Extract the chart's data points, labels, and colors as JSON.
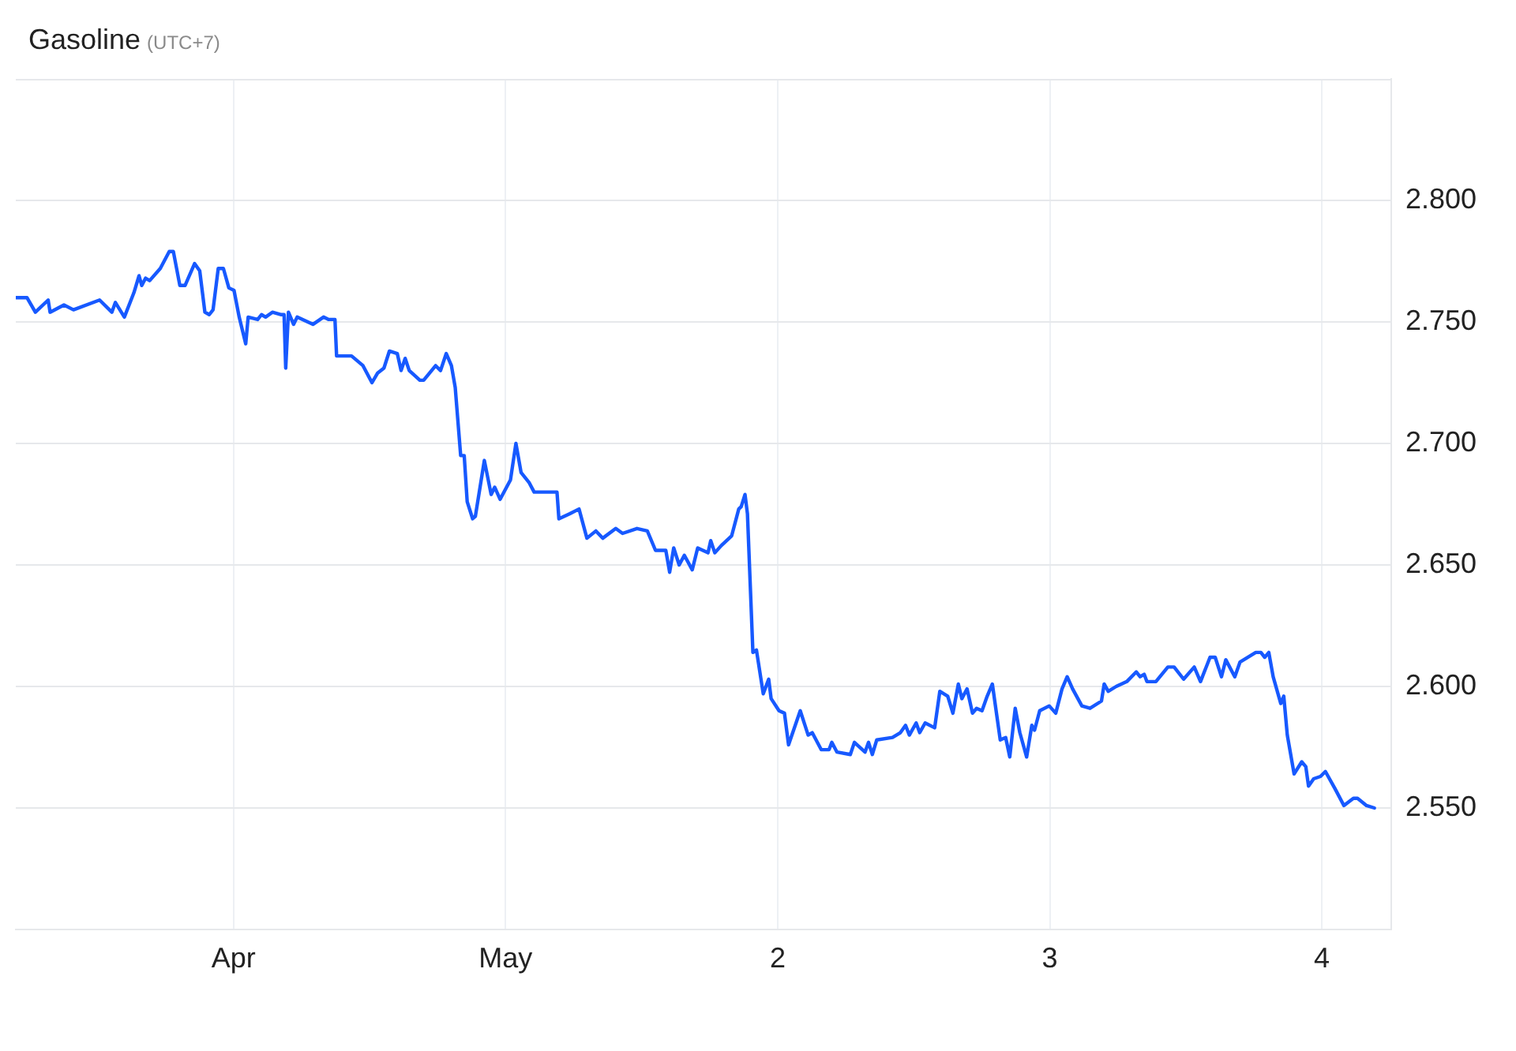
{
  "chart_data": {
    "type": "line",
    "title": "Gasoline",
    "subtitle": "(UTC+7)",
    "x": [
      -0.8,
      -0.759,
      -0.728,
      -0.681,
      -0.674,
      -0.623,
      -0.588,
      -0.492,
      -0.447,
      -0.434,
      -0.401,
      -0.366,
      -0.347,
      -0.337,
      -0.323,
      -0.308,
      -0.269,
      -0.236,
      -0.221,
      -0.197,
      -0.178,
      -0.143,
      -0.124,
      -0.105,
      -0.089,
      -0.075,
      -0.056,
      -0.037,
      -0.017,
      0.002,
      0.021,
      0.045,
      0.054,
      0.089,
      0.103,
      0.118,
      0.143,
      0.176,
      0.186,
      0.192,
      0.202,
      0.221,
      0.234,
      0.292,
      0.331,
      0.35,
      0.373,
      0.379,
      0.434,
      0.476,
      0.509,
      0.53,
      0.553,
      0.573,
      0.602,
      0.616,
      0.631,
      0.646,
      0.685,
      0.699,
      0.743,
      0.761,
      0.782,
      0.801,
      0.815,
      0.835,
      0.848,
      0.859,
      0.879,
      0.889,
      0.922,
      0.947,
      0.96,
      0.98,
      1.018,
      1.038,
      1.057,
      1.086,
      1.105,
      1.189,
      1.196,
      1.235,
      1.27,
      1.299,
      1.332,
      1.357,
      1.405,
      1.43,
      1.483,
      1.521,
      1.551,
      1.589,
      1.603,
      1.618,
      1.638,
      1.657,
      1.686,
      1.706,
      1.744,
      1.754,
      1.769,
      1.793,
      1.831,
      1.857,
      1.866,
      1.88,
      1.889,
      1.909,
      1.922,
      1.947,
      1.967,
      1.976,
      2.005,
      2.025,
      2.04,
      2.083,
      2.112,
      2.127,
      2.16,
      2.189,
      2.199,
      2.218,
      2.267,
      2.282,
      2.321,
      2.334,
      2.348,
      2.364,
      2.422,
      2.451,
      2.47,
      2.484,
      2.509,
      2.522,
      2.542,
      2.577,
      2.596,
      2.625,
      2.644,
      2.664,
      2.677,
      2.696,
      2.716,
      2.731,
      2.751,
      2.77,
      2.789,
      2.818,
      2.838,
      2.853,
      2.873,
      2.89,
      2.915,
      2.934,
      2.944,
      2.963,
      2.998,
      3.022,
      3.045,
      3.064,
      3.084,
      3.118,
      3.148,
      3.19,
      3.2,
      3.215,
      3.244,
      3.283,
      3.318,
      3.332,
      3.347,
      3.357,
      3.39,
      3.434,
      3.457,
      3.492,
      3.531,
      3.554,
      3.589,
      3.608,
      3.631,
      3.647,
      3.68,
      3.699,
      3.757,
      3.776,
      3.79,
      3.805,
      3.821,
      3.849,
      3.86,
      3.873,
      3.898,
      3.926,
      3.941,
      3.951,
      3.97,
      3.995,
      4.013,
      4.048,
      4.081,
      4.116,
      4.131,
      4.164,
      4.193
    ],
    "values": [
      2.76,
      2.76,
      2.754,
      2.759,
      2.754,
      2.757,
      2.755,
      2.759,
      2.754,
      2.758,
      2.752,
      2.762,
      2.769,
      2.765,
      2.768,
      2.767,
      2.772,
      2.779,
      2.779,
      2.765,
      2.765,
      2.774,
      2.771,
      2.754,
      2.753,
      2.755,
      2.772,
      2.772,
      2.764,
      2.763,
      2.752,
      2.741,
      2.752,
      2.751,
      2.753,
      2.752,
      2.754,
      2.753,
      2.753,
      2.731,
      2.754,
      2.749,
      2.752,
      2.749,
      2.752,
      2.751,
      2.751,
      2.736,
      2.736,
      2.732,
      2.725,
      2.729,
      2.731,
      2.738,
      2.737,
      2.73,
      2.735,
      2.73,
      2.726,
      2.726,
      2.732,
      2.73,
      2.737,
      2.732,
      2.723,
      2.695,
      2.695,
      2.676,
      2.669,
      2.67,
      2.693,
      2.679,
      2.682,
      2.677,
      2.685,
      2.7,
      2.688,
      2.684,
      2.68,
      2.68,
      2.669,
      2.671,
      2.673,
      2.661,
      2.664,
      2.661,
      2.665,
      2.663,
      2.665,
      2.664,
      2.656,
      2.656,
      2.647,
      2.657,
      2.65,
      2.654,
      2.648,
      2.657,
      2.655,
      2.66,
      2.655,
      2.658,
      2.662,
      2.673,
      2.674,
      2.679,
      2.671,
      2.614,
      2.615,
      2.597,
      2.603,
      2.595,
      2.59,
      2.589,
      2.576,
      2.59,
      2.58,
      2.581,
      2.574,
      2.574,
      2.577,
      2.573,
      2.572,
      2.577,
      2.573,
      2.577,
      2.572,
      2.578,
      2.579,
      2.581,
      2.584,
      2.58,
      2.585,
      2.581,
      2.585,
      2.583,
      2.598,
      2.596,
      2.589,
      2.601,
      2.595,
      2.599,
      2.589,
      2.591,
      2.59,
      2.596,
      2.601,
      2.578,
      2.579,
      2.571,
      2.591,
      2.581,
      2.571,
      2.584,
      2.582,
      2.59,
      2.592,
      2.589,
      2.599,
      2.604,
      2.599,
      2.592,
      2.591,
      2.594,
      2.601,
      2.598,
      2.6,
      2.602,
      2.606,
      2.604,
      2.605,
      2.602,
      2.602,
      2.608,
      2.608,
      2.603,
      2.608,
      2.602,
      2.612,
      2.612,
      2.604,
      2.611,
      2.604,
      2.61,
      2.614,
      2.614,
      2.612,
      2.614,
      2.604,
      2.593,
      2.596,
      2.58,
      2.564,
      2.569,
      2.567,
      2.559,
      2.562,
      2.563,
      2.565,
      2.558,
      2.551,
      2.554,
      2.554,
      2.551,
      2.55
    ],
    "color": "#1759ff",
    "marker": "none",
    "xlim": [
      -0.8,
      4.255
    ],
    "xticks": [
      {
        "value": 0,
        "label": "Apr"
      },
      {
        "value": 1,
        "label": "May"
      },
      2,
      3,
      4
    ],
    "ylim": [
      2.5,
      2.85
    ],
    "yticks": [
      {
        "value": 2.55,
        "label": "2.550"
      },
      {
        "value": 2.6,
        "label": "2.600"
      },
      {
        "value": 2.65,
        "label": "2.650"
      },
      {
        "value": 2.7,
        "label": "2.700"
      },
      {
        "value": 2.75,
        "label": "2.750"
      },
      {
        "value": 2.8,
        "label": "2.800"
      }
    ],
    "grid": true
  }
}
